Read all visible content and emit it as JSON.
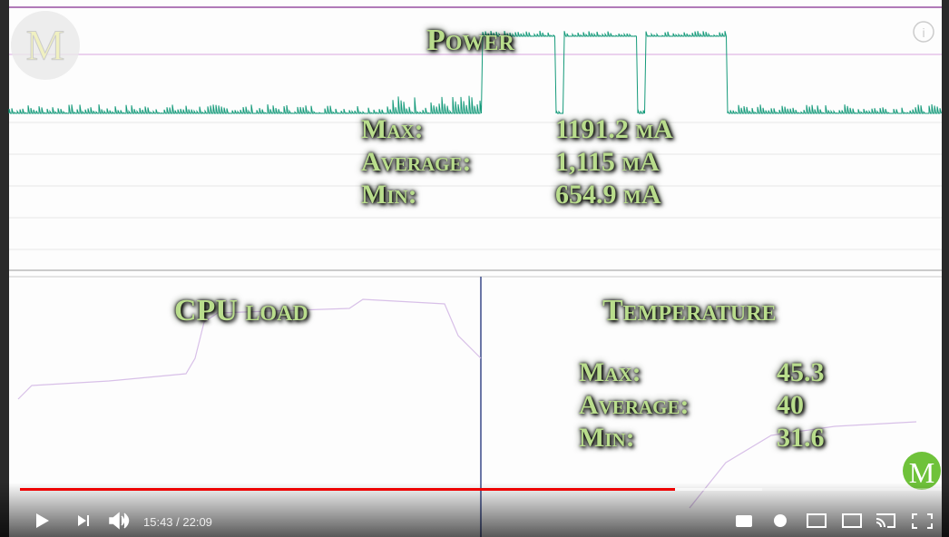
{
  "overlay": {
    "power": {
      "title": "Power",
      "rows": [
        {
          "label": "Max:",
          "value": "1191.2 mA"
        },
        {
          "label": "Average:",
          "value": "1,115 mA"
        },
        {
          "label": "Min:",
          "value": "654.9 mA"
        }
      ]
    },
    "cpu": {
      "title": "CPU load"
    },
    "temperature": {
      "title": "Temperature",
      "rows": [
        {
          "label": "Max:",
          "value": "45.3"
        },
        {
          "label": "Average:",
          "value": "40"
        },
        {
          "label": "Min:",
          "value": "31.6"
        }
      ]
    }
  },
  "player": {
    "time": "15:43 / 22:09"
  }
}
